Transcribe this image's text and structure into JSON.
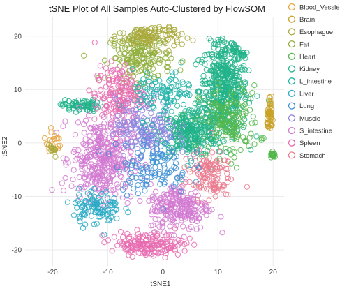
{
  "chart_data": {
    "type": "scatter",
    "title": "tSNE Plot of All Samples Auto-Clustered by FlowSOM",
    "xlabel": "tSNE1",
    "ylabel": "tSNE2",
    "xlim": [
      -25,
      22
    ],
    "ylim": [
      -23,
      23.5
    ],
    "x_ticks": [
      -20,
      -10,
      0,
      10,
      20
    ],
    "y_ticks": [
      -20,
      -10,
      0,
      10,
      20
    ],
    "grid": true,
    "legend_position": "right",
    "marker": "open-circle",
    "series": [
      {
        "name": "Blood_Vessle",
        "color": "#e8a33d"
      },
      {
        "name": "Brain",
        "color": "#c9a227"
      },
      {
        "name": "Esophague",
        "color": "#a8a83a"
      },
      {
        "name": "Fat",
        "color": "#8fae3b"
      },
      {
        "name": "Heart",
        "color": "#53b74c"
      },
      {
        "name": "Kidney",
        "color": "#21b389"
      },
      {
        "name": "L_intestine",
        "color": "#1fb3a8"
      },
      {
        "name": "Liver",
        "color": "#27a9c4"
      },
      {
        "name": "Lung",
        "color": "#3d8fd6"
      },
      {
        "name": "Muscle",
        "color": "#8f86df"
      },
      {
        "name": "S_intestine",
        "color": "#d279d1"
      },
      {
        "name": "Spleen",
        "color": "#e86bb0"
      },
      {
        "name": "Stomach",
        "color": "#ea7a8e"
      }
    ],
    "clusters": [
      {
        "series": "Kidney",
        "x": 11,
        "y": 10,
        "sx": 4,
        "sy": 8,
        "n": 420
      },
      {
        "series": "Kidney",
        "x": 5,
        "y": 2,
        "sx": 5,
        "sy": 4,
        "n": 280
      },
      {
        "series": "Kidney",
        "x": 13,
        "y": 18,
        "sx": 3,
        "sy": 2,
        "n": 70
      },
      {
        "series": "Kidney",
        "x": -15,
        "y": 7,
        "sx": 3,
        "sy": 1,
        "n": 70
      },
      {
        "series": "Heart",
        "x": 12,
        "y": 4,
        "sx": 5,
        "sy": 6,
        "n": 160
      },
      {
        "series": "Fat",
        "x": -4,
        "y": 16,
        "sx": 5,
        "sy": 4,
        "n": 170
      },
      {
        "series": "Esophague",
        "x": -2,
        "y": 20,
        "sx": 5,
        "sy": 2,
        "n": 110
      },
      {
        "series": "S_intestine",
        "x": -11,
        "y": -3,
        "sx": 5,
        "sy": 7,
        "n": 360
      },
      {
        "series": "S_intestine",
        "x": 3,
        "y": -12,
        "sx": 5,
        "sy": 4,
        "n": 220
      },
      {
        "series": "Spleen",
        "x": -3,
        "y": -19,
        "sx": 6,
        "sy": 2,
        "n": 170
      },
      {
        "series": "Spleen",
        "x": -8,
        "y": 9,
        "sx": 4,
        "sy": 5,
        "n": 160
      },
      {
        "series": "Stomach",
        "x": 8,
        "y": -6,
        "sx": 4,
        "sy": 4,
        "n": 120
      },
      {
        "series": "Muscle",
        "x": -3,
        "y": 3,
        "sx": 5,
        "sy": 5,
        "n": 160
      },
      {
        "series": "Lung",
        "x": -2,
        "y": -4,
        "sx": 6,
        "sy": 5,
        "n": 120
      },
      {
        "series": "Liver",
        "x": -12,
        "y": -12,
        "sx": 4,
        "sy": 3,
        "n": 100
      },
      {
        "series": "L_intestine",
        "x": 0,
        "y": 9,
        "sx": 5,
        "sy": 4,
        "n": 100
      },
      {
        "series": "Brain",
        "x": 19.5,
        "y": 5,
        "sx": 0.5,
        "sy": 2.5,
        "n": 50
      },
      {
        "series": "Heart",
        "x": 20,
        "y": -2.3,
        "sx": 0.4,
        "sy": 0.4,
        "n": 25
      },
      {
        "series": "Blood_Vessle",
        "x": -20,
        "y": 0,
        "sx": 1.5,
        "sy": 2,
        "n": 20
      },
      {
        "series": "Esophague",
        "x": -20,
        "y": -1.5,
        "sx": 1,
        "sy": 1,
        "n": 12
      }
    ]
  }
}
